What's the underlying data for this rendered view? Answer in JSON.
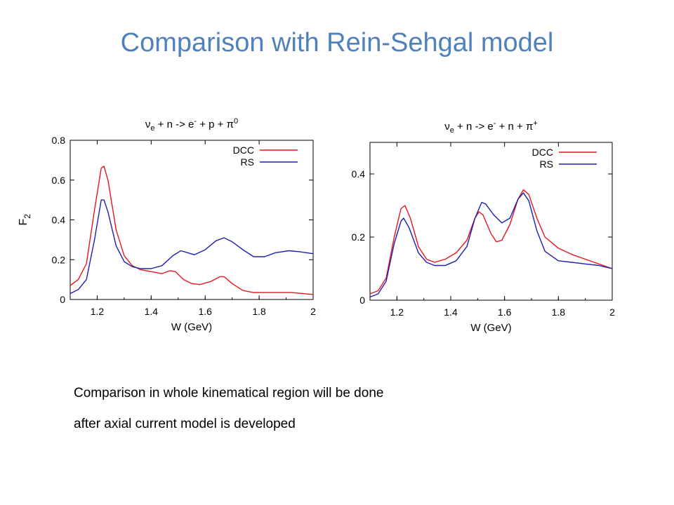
{
  "slide": {
    "title": "Comparison with Rein-Sehgal model",
    "note_line1": "Comparison in whole kinematical region will be done",
    "note_line2": "after axial current model is developed"
  },
  "chart_data": [
    {
      "type": "line",
      "title_parts": {
        "nu": "ν",
        "e_sub": "e",
        "mid": " + n -> e",
        "sup": "-",
        "rest": " + p + ",
        "pi": "π",
        "pi_sup": "0"
      },
      "xlabel": "W (GeV)",
      "ylabel": "F",
      "ylabel_sub": "2",
      "xlim": [
        1.1,
        2.0
      ],
      "ylim": [
        0,
        0.8
      ],
      "xticks": [
        1.2,
        1.4,
        1.6,
        1.8,
        2
      ],
      "xtick_labels": [
        "1.2",
        "1.4",
        "1.6",
        "1.8",
        "2"
      ],
      "yticks": [
        0,
        0.2,
        0.4,
        0.6,
        0.8
      ],
      "ytick_labels": [
        "0",
        "0.2",
        "0.4",
        "0.6",
        "0.8"
      ],
      "legend_position": "top-right",
      "series": [
        {
          "name": "DCC",
          "color": "#e8141e",
          "points": [
            [
              1.1,
              0.07
            ],
            [
              1.13,
              0.1
            ],
            [
              1.16,
              0.18
            ],
            [
              1.19,
              0.45
            ],
            [
              1.215,
              0.66
            ],
            [
              1.225,
              0.67
            ],
            [
              1.24,
              0.6
            ],
            [
              1.27,
              0.35
            ],
            [
              1.3,
              0.22
            ],
            [
              1.33,
              0.17
            ],
            [
              1.36,
              0.15
            ],
            [
              1.4,
              0.14
            ],
            [
              1.44,
              0.13
            ],
            [
              1.47,
              0.145
            ],
            [
              1.49,
              0.14
            ],
            [
              1.52,
              0.1
            ],
            [
              1.55,
              0.08
            ],
            [
              1.58,
              0.075
            ],
            [
              1.62,
              0.09
            ],
            [
              1.655,
              0.115
            ],
            [
              1.67,
              0.115
            ],
            [
              1.7,
              0.08
            ],
            [
              1.74,
              0.045
            ],
            [
              1.78,
              0.035
            ],
            [
              1.85,
              0.035
            ],
            [
              1.92,
              0.035
            ],
            [
              2.0,
              0.025
            ]
          ]
        },
        {
          "name": "RS",
          "color": "#1e1eb4",
          "points": [
            [
              1.1,
              0.03
            ],
            [
              1.13,
              0.05
            ],
            [
              1.16,
              0.1
            ],
            [
              1.19,
              0.3
            ],
            [
              1.215,
              0.5
            ],
            [
              1.225,
              0.5
            ],
            [
              1.24,
              0.44
            ],
            [
              1.27,
              0.27
            ],
            [
              1.3,
              0.19
            ],
            [
              1.33,
              0.165
            ],
            [
              1.36,
              0.155
            ],
            [
              1.4,
              0.155
            ],
            [
              1.44,
              0.17
            ],
            [
              1.48,
              0.22
            ],
            [
              1.51,
              0.245
            ],
            [
              1.535,
              0.235
            ],
            [
              1.56,
              0.225
            ],
            [
              1.6,
              0.25
            ],
            [
              1.64,
              0.295
            ],
            [
              1.67,
              0.31
            ],
            [
              1.7,
              0.29
            ],
            [
              1.74,
              0.25
            ],
            [
              1.78,
              0.215
            ],
            [
              1.82,
              0.215
            ],
            [
              1.86,
              0.235
            ],
            [
              1.91,
              0.245
            ],
            [
              1.95,
              0.24
            ],
            [
              2.0,
              0.23
            ]
          ]
        }
      ]
    },
    {
      "type": "line",
      "title_parts": {
        "nu": "ν",
        "e_sub": "e",
        "mid": " + n -> e",
        "sup": "-",
        "rest": " + n + ",
        "pi": "π",
        "pi_sup": "+"
      },
      "xlabel": "W (GeV)",
      "ylabel": "",
      "ylabel_sub": "",
      "xlim": [
        1.1,
        2.0
      ],
      "ylim": [
        0,
        0.5
      ],
      "xticks": [
        1.2,
        1.4,
        1.6,
        1.8,
        2
      ],
      "xtick_labels": [
        "1.2",
        "1.4",
        "1.6",
        "1.8",
        "2"
      ],
      "yticks": [
        0,
        0.2,
        0.4
      ],
      "ytick_labels": [
        "0",
        "0.2",
        "0.4"
      ],
      "legend_position": "top-right",
      "series": [
        {
          "name": "DCC",
          "color": "#e8141e",
          "points": [
            [
              1.1,
              0.02
            ],
            [
              1.13,
              0.03
            ],
            [
              1.16,
              0.07
            ],
            [
              1.19,
              0.2
            ],
            [
              1.215,
              0.29
            ],
            [
              1.23,
              0.3
            ],
            [
              1.25,
              0.26
            ],
            [
              1.28,
              0.17
            ],
            [
              1.31,
              0.13
            ],
            [
              1.34,
              0.12
            ],
            [
              1.38,
              0.13
            ],
            [
              1.42,
              0.15
            ],
            [
              1.46,
              0.19
            ],
            [
              1.49,
              0.26
            ],
            [
              1.505,
              0.28
            ],
            [
              1.52,
              0.27
            ],
            [
              1.55,
              0.21
            ],
            [
              1.57,
              0.185
            ],
            [
              1.59,
              0.19
            ],
            [
              1.62,
              0.24
            ],
            [
              1.65,
              0.32
            ],
            [
              1.67,
              0.35
            ],
            [
              1.69,
              0.335
            ],
            [
              1.72,
              0.26
            ],
            [
              1.75,
              0.2
            ],
            [
              1.8,
              0.165
            ],
            [
              1.85,
              0.145
            ],
            [
              1.9,
              0.13
            ],
            [
              1.95,
              0.115
            ],
            [
              2.0,
              0.1
            ]
          ]
        },
        {
          "name": "RS",
          "color": "#1e1eb4",
          "points": [
            [
              1.1,
              0.01
            ],
            [
              1.13,
              0.02
            ],
            [
              1.16,
              0.06
            ],
            [
              1.19,
              0.18
            ],
            [
              1.215,
              0.25
            ],
            [
              1.225,
              0.26
            ],
            [
              1.245,
              0.23
            ],
            [
              1.28,
              0.15
            ],
            [
              1.31,
              0.12
            ],
            [
              1.34,
              0.11
            ],
            [
              1.38,
              0.11
            ],
            [
              1.42,
              0.125
            ],
            [
              1.46,
              0.17
            ],
            [
              1.49,
              0.26
            ],
            [
              1.515,
              0.31
            ],
            [
              1.53,
              0.305
            ],
            [
              1.56,
              0.27
            ],
            [
              1.59,
              0.245
            ],
            [
              1.62,
              0.26
            ],
            [
              1.65,
              0.32
            ],
            [
              1.67,
              0.34
            ],
            [
              1.69,
              0.315
            ],
            [
              1.72,
              0.22
            ],
            [
              1.75,
              0.155
            ],
            [
              1.8,
              0.125
            ],
            [
              1.85,
              0.12
            ],
            [
              1.9,
              0.115
            ],
            [
              1.95,
              0.11
            ],
            [
              2.0,
              0.1
            ]
          ]
        }
      ]
    }
  ]
}
